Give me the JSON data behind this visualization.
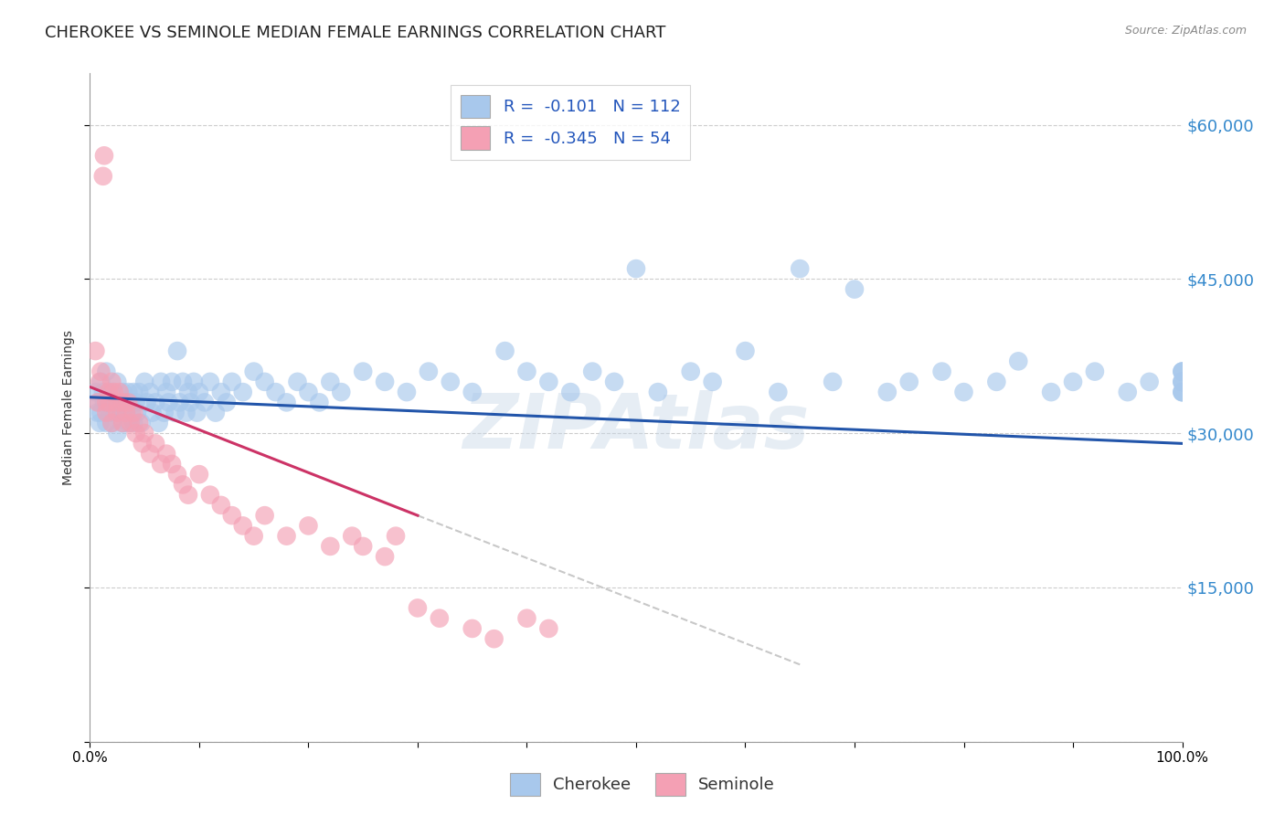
{
  "title": "CHEROKEE VS SEMINOLE MEDIAN FEMALE EARNINGS CORRELATION CHART",
  "source": "Source: ZipAtlas.com",
  "ylabel": "Median Female Earnings",
  "y_tick_labels": [
    "",
    "$15,000",
    "$30,000",
    "$45,000",
    "$60,000"
  ],
  "y_tick_values": [
    0,
    15000,
    30000,
    45000,
    60000
  ],
  "xlim": [
    0,
    1.0
  ],
  "ylim": [
    0,
    65000
  ],
  "legend_label_1": "R =  -0.101   N = 112",
  "legend_label_2": "R =  -0.345   N = 54",
  "watermark": "ZIPAtlas",
  "cherokee_color": "#a8c8ec",
  "seminole_color": "#f4a0b4",
  "cherokee_trend_color": "#2255aa",
  "seminole_trend_color": "#cc3366",
  "gray_trend_color": "#c8c8c8",
  "background_color": "#ffffff",
  "grid_color": "#cccccc",
  "title_fontsize": 13,
  "label_fontsize": 10,
  "tick_fontsize": 11,
  "right_tick_color": "#3388cc",
  "cherokee_x": [
    0.005,
    0.007,
    0.008,
    0.009,
    0.01,
    0.01,
    0.012,
    0.013,
    0.015,
    0.015,
    0.017,
    0.018,
    0.02,
    0.02,
    0.022,
    0.023,
    0.025,
    0.025,
    0.027,
    0.028,
    0.03,
    0.03,
    0.032,
    0.033,
    0.035,
    0.035,
    0.037,
    0.038,
    0.04,
    0.04,
    0.042,
    0.043,
    0.045,
    0.047,
    0.05,
    0.052,
    0.055,
    0.057,
    0.06,
    0.063,
    0.065,
    0.068,
    0.07,
    0.072,
    0.075,
    0.078,
    0.08,
    0.082,
    0.085,
    0.088,
    0.09,
    0.092,
    0.095,
    0.098,
    0.1,
    0.105,
    0.11,
    0.115,
    0.12,
    0.125,
    0.13,
    0.14,
    0.15,
    0.16,
    0.17,
    0.18,
    0.19,
    0.2,
    0.21,
    0.22,
    0.23,
    0.25,
    0.27,
    0.29,
    0.31,
    0.33,
    0.35,
    0.38,
    0.4,
    0.42,
    0.44,
    0.46,
    0.48,
    0.5,
    0.52,
    0.55,
    0.57,
    0.6,
    0.63,
    0.65,
    0.68,
    0.7,
    0.73,
    0.75,
    0.78,
    0.8,
    0.83,
    0.85,
    0.88,
    0.9,
    0.92,
    0.95,
    0.97,
    1.0,
    1.0,
    1.0,
    1.0,
    1.0,
    1.0,
    1.0,
    1.0,
    1.0
  ],
  "cherokee_y": [
    34000,
    32000,
    33000,
    31000,
    35000,
    32000,
    34000,
    33000,
    36000,
    31000,
    33000,
    32000,
    34000,
    31000,
    33000,
    32000,
    35000,
    30000,
    33000,
    32000,
    34000,
    31000,
    33000,
    32000,
    34000,
    31000,
    33000,
    32000,
    34000,
    31000,
    33000,
    32000,
    34000,
    31000,
    35000,
    33000,
    34000,
    32000,
    33000,
    31000,
    35000,
    32000,
    34000,
    33000,
    35000,
    32000,
    38000,
    33000,
    35000,
    32000,
    34000,
    33000,
    35000,
    32000,
    34000,
    33000,
    35000,
    32000,
    34000,
    33000,
    35000,
    34000,
    36000,
    35000,
    34000,
    33000,
    35000,
    34000,
    33000,
    35000,
    34000,
    36000,
    35000,
    34000,
    36000,
    35000,
    34000,
    38000,
    36000,
    35000,
    34000,
    36000,
    35000,
    46000,
    34000,
    36000,
    35000,
    38000,
    34000,
    46000,
    35000,
    44000,
    34000,
    35000,
    36000,
    34000,
    35000,
    37000,
    34000,
    35000,
    36000,
    34000,
    35000,
    36000,
    34000,
    35000,
    36000,
    34000,
    35000,
    36000,
    34000,
    35000
  ],
  "seminole_x": [
    0.005,
    0.007,
    0.009,
    0.01,
    0.012,
    0.013,
    0.015,
    0.015,
    0.017,
    0.018,
    0.02,
    0.02,
    0.022,
    0.025,
    0.025,
    0.027,
    0.03,
    0.03,
    0.033,
    0.035,
    0.037,
    0.04,
    0.042,
    0.045,
    0.048,
    0.05,
    0.055,
    0.06,
    0.065,
    0.07,
    0.075,
    0.08,
    0.085,
    0.09,
    0.1,
    0.11,
    0.12,
    0.13,
    0.14,
    0.15,
    0.16,
    0.18,
    0.2,
    0.22,
    0.24,
    0.25,
    0.27,
    0.28,
    0.3,
    0.32,
    0.35,
    0.37,
    0.4,
    0.42
  ],
  "seminole_y": [
    38000,
    33000,
    35000,
    36000,
    55000,
    57000,
    33000,
    32000,
    34000,
    33000,
    35000,
    31000,
    34000,
    33000,
    32000,
    34000,
    33000,
    31000,
    32000,
    33000,
    31000,
    32000,
    30000,
    31000,
    29000,
    30000,
    28000,
    29000,
    27000,
    28000,
    27000,
    26000,
    25000,
    24000,
    26000,
    24000,
    23000,
    22000,
    21000,
    20000,
    22000,
    20000,
    21000,
    19000,
    20000,
    19000,
    18000,
    20000,
    13000,
    12000,
    11000,
    10000,
    12000,
    11000
  ],
  "cherokee_trend_x0": 0.0,
  "cherokee_trend_x1": 1.0,
  "cherokee_trend_y0": 33500,
  "cherokee_trend_y1": 29000,
  "seminole_trend_x0": 0.0,
  "seminole_trend_x1": 0.3,
  "seminole_trend_y0": 34500,
  "seminole_trend_y1": 22000,
  "gray_trend_x0": 0.3,
  "gray_trend_x1": 0.65,
  "gray_trend_y0": 22000,
  "gray_trend_y1": 7500
}
